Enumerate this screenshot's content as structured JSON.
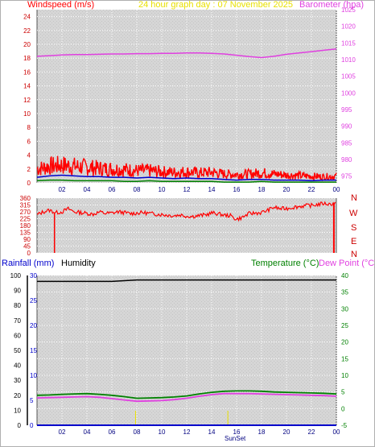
{
  "header": {
    "windspeed_label": "Windspeed (m/s)",
    "graph_title": "24 hour graph day : 07 November 2025",
    "barometer_label": "Barometer (hpa)"
  },
  "lower_header": {
    "rainfall_label": "Rainfall (mm)",
    "humidity_label": "Humidity",
    "temperature_label": "Temperature (°C)",
    "dewpoint_label": "Dew Point (°C)"
  },
  "compass_labels": [
    "N",
    "W",
    "S",
    "E",
    "N"
  ],
  "sunset_label": "SunSet",
  "colors": {
    "windspeed": "#ff0000",
    "gust": "#ff0000",
    "avg_wind": "#0000cc",
    "green_wind": "#008000",
    "barometer": "#e040e0",
    "title": "#e8e000",
    "rainfall": "#0000cc",
    "humidity": "#000000",
    "temperature": "#008000",
    "dewpoint": "#e040e0",
    "plot_bg": "#d4d4d4"
  },
  "chart_data": [
    {
      "type": "line",
      "name": "wind-baro",
      "x_ticks": [
        "02",
        "04",
        "06",
        "08",
        "10",
        "12",
        "14",
        "16",
        "18",
        "20",
        "22",
        "00"
      ],
      "x_range": [
        0,
        24
      ],
      "left_axis": {
        "label": "Windspeed (m/s)",
        "range": [
          0,
          25
        ],
        "ticks": [
          0,
          2,
          4,
          6,
          8,
          10,
          12,
          14,
          16,
          18,
          20,
          22,
          24
        ]
      },
      "right_axis": {
        "label": "Barometer (hpa)",
        "range": [
          973,
          1025
        ],
        "ticks": [
          975,
          980,
          985,
          990,
          995,
          1000,
          1005,
          1010,
          1015,
          1020,
          1025
        ]
      },
      "series": [
        {
          "name": "Barometer",
          "axis": "right",
          "x": [
            0,
            1,
            2,
            3,
            4,
            5,
            6,
            7,
            8,
            9,
            10,
            11,
            12,
            13,
            14,
            15,
            16,
            17,
            18,
            19,
            20,
            21,
            22,
            23,
            24
          ],
          "values": [
            1011.0,
            1011.2,
            1011.4,
            1011.5,
            1011.5,
            1011.6,
            1011.7,
            1011.7,
            1011.8,
            1011.8,
            1011.9,
            1011.9,
            1012.0,
            1012.0,
            1011.9,
            1011.7,
            1011.3,
            1010.9,
            1010.6,
            1011.0,
            1011.6,
            1012.0,
            1012.4,
            1012.8,
            1013.2
          ]
        },
        {
          "name": "Gust",
          "axis": "left",
          "x": [
            0,
            1,
            2,
            3,
            4,
            5,
            6,
            7,
            8,
            9,
            10,
            11,
            12,
            13,
            14,
            15,
            16,
            17,
            18,
            19,
            20,
            21,
            22,
            23,
            24
          ],
          "values": [
            2.5,
            3.0,
            3.2,
            3.0,
            2.8,
            2.6,
            2.5,
            2.4,
            2.2,
            2.2,
            2.0,
            1.9,
            2.0,
            1.8,
            1.9,
            1.6,
            1.5,
            1.6,
            1.8,
            1.6,
            1.4,
            1.3,
            1.2,
            1.1,
            1.2
          ]
        },
        {
          "name": "Average",
          "axis": "left",
          "x": [
            0,
            1,
            2,
            3,
            4,
            5,
            6,
            7,
            8,
            9,
            10,
            11,
            12,
            13,
            14,
            15,
            16,
            17,
            18,
            19,
            20,
            21,
            22,
            23,
            24
          ],
          "values": [
            0.8,
            1.0,
            1.1,
            1.0,
            0.9,
            0.9,
            0.8,
            0.8,
            0.7,
            0.8,
            0.7,
            0.6,
            0.7,
            0.6,
            0.6,
            0.5,
            0.4,
            0.5,
            0.5,
            0.4,
            0.4,
            0.4,
            0.3,
            0.4,
            0.4
          ]
        },
        {
          "name": "Wind (green)",
          "axis": "left",
          "x": [
            0,
            1,
            2,
            3,
            4,
            5,
            6,
            7,
            8,
            9,
            10,
            11,
            12,
            13,
            14,
            15,
            16,
            17,
            18,
            19,
            20,
            21,
            22,
            23,
            24
          ],
          "values": [
            0.3,
            0.4,
            0.4,
            0.3,
            0.3,
            0.3,
            0.3,
            0.2,
            0.2,
            0.3,
            0.2,
            0.2,
            0.2,
            0.2,
            0.2,
            0.1,
            0.1,
            0.1,
            0.2,
            0.1,
            0.1,
            0.1,
            0.1,
            0.1,
            0.1
          ]
        }
      ]
    },
    {
      "type": "line",
      "name": "wind-direction",
      "x_range": [
        0,
        24
      ],
      "left_axis": {
        "range": [
          0,
          360
        ],
        "ticks": [
          0,
          45,
          90,
          135,
          180,
          225,
          270,
          315,
          360
        ]
      },
      "series": [
        {
          "name": "Direction",
          "x": [
            0,
            0.5,
            1,
            1.5,
            2,
            2.5,
            3,
            3.5,
            4,
            4.5,
            5,
            5.5,
            6,
            6.5,
            7,
            7.5,
            8,
            8.5,
            9,
            9.5,
            10,
            10.5,
            11,
            11.5,
            12,
            12.5,
            13,
            13.5,
            14,
            14.5,
            15,
            15.5,
            16,
            16.5,
            17,
            17.5,
            18,
            18.5,
            19,
            19.5,
            20,
            20.5,
            21,
            21.5,
            22,
            22.5,
            23,
            23.5,
            24
          ],
          "values": [
            250,
            270,
            280,
            265,
            270,
            290,
            270,
            265,
            260,
            255,
            268,
            260,
            262,
            270,
            265,
            258,
            262,
            265,
            260,
            255,
            252,
            248,
            245,
            250,
            242,
            240,
            245,
            250,
            262,
            258,
            248,
            245,
            220,
            235,
            258,
            262,
            265,
            280,
            300,
            290,
            292,
            300,
            305,
            310,
            312,
            318,
            325,
            320,
            330
          ]
        }
      ]
    },
    {
      "type": "line",
      "name": "rain-hum-temp",
      "x_ticks": [
        "02",
        "04",
        "06",
        "08",
        "10",
        "12",
        "14",
        "16",
        "18",
        "20",
        "22",
        "00"
      ],
      "x_range": [
        0,
        24
      ],
      "left_axis": {
        "label": "Rainfall (mm) / Humidity",
        "range": [
          0,
          100
        ],
        "ticks": [
          0,
          10,
          20,
          30,
          40,
          50,
          60,
          70,
          80,
          90,
          100
        ]
      },
      "left_axis_2": {
        "range": [
          0,
          30
        ],
        "ticks": [
          0,
          5,
          10,
          15,
          20,
          25,
          30
        ]
      },
      "right_axis": {
        "label": "Temperature (°C) / Dew Point (°C)",
        "range": [
          -5,
          40
        ],
        "ticks": [
          -5,
          0,
          5,
          10,
          15,
          20,
          25,
          30,
          35,
          40
        ]
      },
      "series": [
        {
          "name": "Humidity",
          "axis": "left",
          "x": [
            0,
            2,
            4,
            6,
            8,
            10,
            12,
            14,
            16,
            18,
            20,
            22,
            24
          ],
          "values": [
            96,
            96,
            96,
            96,
            97,
            97,
            97,
            97,
            97,
            97,
            97,
            97,
            97
          ]
        },
        {
          "name": "Temperature",
          "axis": "right",
          "x": [
            0,
            1,
            2,
            3,
            4,
            5,
            6,
            7,
            8,
            9,
            10,
            11,
            12,
            13,
            14,
            15,
            16,
            17,
            18,
            19,
            20,
            21,
            22,
            23,
            24
          ],
          "values": [
            4.0,
            4.1,
            4.3,
            4.4,
            4.5,
            4.3,
            4.0,
            3.6,
            3.1,
            3.2,
            3.3,
            3.5,
            3.8,
            4.4,
            4.9,
            5.2,
            5.3,
            5.3,
            5.2,
            5.0,
            4.9,
            4.8,
            4.7,
            4.6,
            4.4
          ]
        },
        {
          "name": "Dew Point",
          "axis": "right",
          "x": [
            0,
            1,
            2,
            3,
            4,
            5,
            6,
            7,
            8,
            9,
            10,
            11,
            12,
            13,
            14,
            15,
            16,
            17,
            18,
            19,
            20,
            21,
            22,
            23,
            24
          ],
          "values": [
            3.2,
            3.3,
            3.4,
            3.5,
            3.6,
            3.4,
            3.0,
            2.6,
            2.2,
            2.3,
            2.4,
            2.7,
            3.1,
            3.7,
            4.2,
            4.5,
            4.5,
            4.5,
            4.4,
            4.3,
            4.2,
            4.1,
            4.0,
            3.9,
            3.7
          ]
        },
        {
          "name": "Rainfall",
          "axis": "left2",
          "x": [
            0,
            24
          ],
          "values": [
            0,
            0
          ]
        }
      ]
    }
  ]
}
